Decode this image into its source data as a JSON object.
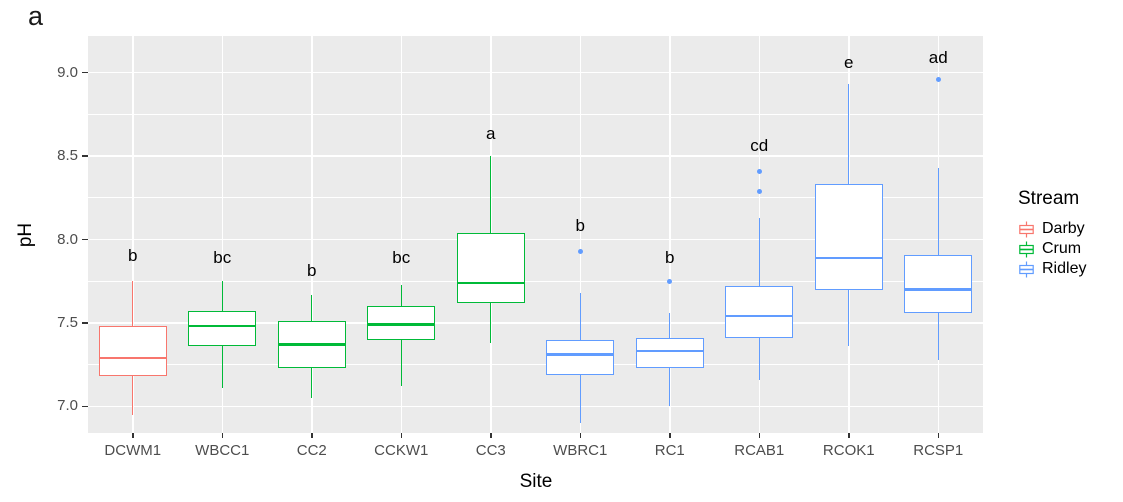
{
  "panel_tag": "a",
  "colors": {
    "panel_background": "#EBEBEB",
    "gridline": "#FFFFFF",
    "tick_text": "#4D4D4D",
    "tick_mark": "#333333",
    "darby": "#F8766D",
    "crum": "#00BA38",
    "ridley": "#619CFF"
  },
  "chart_data": {
    "type": "boxplot",
    "title": "",
    "xlabel": "Site",
    "ylabel": "pH",
    "ylim": [
      6.84,
      9.22
    ],
    "yticks": [
      7.0,
      7.5,
      8.0,
      8.5,
      9.0
    ],
    "ytick_labels": [
      "7.0",
      "7.5",
      "8.0",
      "8.5",
      "9.0"
    ],
    "minor_yticks": [
      7.25,
      7.75,
      8.25,
      8.75
    ],
    "grid": true,
    "legend": {
      "title": "Stream",
      "position": "right",
      "entries": [
        {
          "label": "Darby",
          "color": "#F8766D"
        },
        {
          "label": "Crum",
          "color": "#00BA38"
        },
        {
          "label": "Ridley",
          "color": "#619CFF"
        }
      ]
    },
    "sites": [
      {
        "site": "DCWM1",
        "stream": "Darby",
        "color": "#F8766D",
        "sig_label": "b",
        "label_ph": 7.9,
        "whisker_low": 6.95,
        "q1": 7.18,
        "median": 7.29,
        "q3": 7.48,
        "whisker_high": 7.75,
        "outliers": []
      },
      {
        "site": "WBCC1",
        "stream": "Crum",
        "color": "#00BA38",
        "sig_label": "bc",
        "label_ph": 7.89,
        "whisker_low": 7.11,
        "q1": 7.36,
        "median": 7.48,
        "q3": 7.57,
        "whisker_high": 7.75,
        "outliers": []
      },
      {
        "site": "CC2",
        "stream": "Crum",
        "color": "#00BA38",
        "sig_label": "b",
        "label_ph": 7.81,
        "whisker_low": 7.05,
        "q1": 7.23,
        "median": 7.37,
        "q3": 7.51,
        "whisker_high": 7.67,
        "outliers": []
      },
      {
        "site": "CCKW1",
        "stream": "Crum",
        "color": "#00BA38",
        "sig_label": "bc",
        "label_ph": 7.89,
        "whisker_low": 7.12,
        "q1": 7.4,
        "median": 7.49,
        "q3": 7.6,
        "whisker_high": 7.73,
        "outliers": []
      },
      {
        "site": "CC3",
        "stream": "Crum",
        "color": "#00BA38",
        "sig_label": "a",
        "label_ph": 8.63,
        "whisker_low": 7.38,
        "q1": 7.62,
        "median": 7.74,
        "q3": 8.04,
        "whisker_high": 8.5,
        "outliers": []
      },
      {
        "site": "WBRC1",
        "stream": "Ridley",
        "color": "#619CFF",
        "sig_label": "b",
        "label_ph": 8.08,
        "whisker_low": 6.9,
        "q1": 7.19,
        "median": 7.31,
        "q3": 7.4,
        "whisker_high": 7.68,
        "outliers": [
          7.93
        ]
      },
      {
        "site": "RC1",
        "stream": "Ridley",
        "color": "#619CFF",
        "sig_label": "b",
        "label_ph": 7.89,
        "whisker_low": 7.0,
        "q1": 7.23,
        "median": 7.33,
        "q3": 7.41,
        "whisker_high": 7.56,
        "outliers": [
          7.75
        ]
      },
      {
        "site": "RCAB1",
        "stream": "Ridley",
        "color": "#619CFF",
        "sig_label": "cd",
        "label_ph": 8.56,
        "whisker_low": 7.16,
        "q1": 7.41,
        "median": 7.54,
        "q3": 7.72,
        "whisker_high": 8.13,
        "outliers": [
          8.29,
          8.41
        ]
      },
      {
        "site": "RCOK1",
        "stream": "Ridley",
        "color": "#619CFF",
        "sig_label": "e",
        "label_ph": 9.06,
        "whisker_low": 7.36,
        "q1": 7.7,
        "median": 7.89,
        "q3": 8.33,
        "whisker_high": 8.93,
        "outliers": []
      },
      {
        "site": "RCSP1",
        "stream": "Ridley",
        "color": "#619CFF",
        "sig_label": "ad",
        "label_ph": 9.09,
        "whisker_low": 7.28,
        "q1": 7.56,
        "median": 7.7,
        "q3": 7.91,
        "whisker_high": 8.43,
        "outliers": [
          8.96
        ]
      }
    ]
  }
}
